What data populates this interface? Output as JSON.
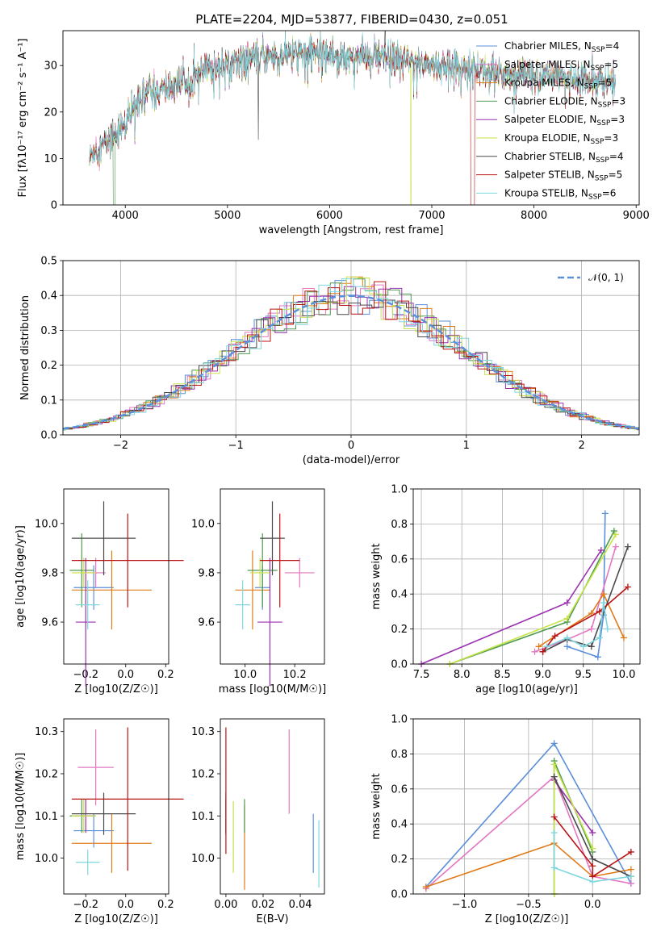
{
  "figure": {
    "title": "PLATE=2204, MJD=53877, FIBERID=0430, z=0.051",
    "model_colors": {
      "Chabrier MILES": "#5b8fd9",
      "Salpeter MILES": "#e377c2",
      "Kroupa MILES": "#e07b1a",
      "Chabrier ELODIE": "#4e9a4e",
      "Salpeter ELODIE": "#9b30b0",
      "Kroupa ELODIE": "#c7e34a",
      "Chabrier STELIB": "#4a4a4a",
      "Salpeter STELIB": "#b81414",
      "Kroupa STELIB": "#7fd6de"
    }
  },
  "chart_data": [
    {
      "id": "spectrum",
      "type": "line",
      "title": "PLATE=2204, MJD=53877, FIBERID=0430, z=0.051",
      "xlabel": "wavelength [Angstrom, rest frame]",
      "ylabel": "Flux [fλ10⁻¹⁷ erg cm⁻² s⁻¹ A⁻¹]",
      "xlim": [
        3390,
        9030
      ],
      "ylim": [
        0,
        37.5
      ],
      "xticks": [
        4000,
        5000,
        6000,
        7000,
        8000,
        9000
      ],
      "yticks": [
        0,
        10,
        20,
        30
      ],
      "grid": false,
      "legend_position": "top-right",
      "continuum": {
        "x": [
          3650,
          3700,
          3800,
          3900,
          4000,
          4100,
          4200,
          4300,
          4500,
          4700,
          4900,
          5100,
          5300,
          5500,
          5700,
          5900,
          6100,
          6300,
          6500,
          6700,
          6900,
          7100,
          7300,
          7500,
          7700,
          7900,
          8100,
          8300,
          8500,
          8800
        ],
        "y": [
          10,
          12,
          13,
          16,
          17,
          22,
          25,
          24,
          26,
          28,
          30,
          31,
          32,
          32,
          33,
          33,
          32,
          32,
          31.5,
          31,
          30.5,
          30,
          29.5,
          29,
          28.5,
          28,
          27.5,
          27.5,
          27,
          26.5
        ]
      },
      "series": [
        {
          "name": "Chabrier MILES, N_SSP=4",
          "label_text": "Chabrier MILES, N",
          "sub": "SSP",
          "suffix": "=4"
        },
        {
          "name": "Salpeter MILES, N_SSP=5",
          "label_text": "Salpeter MILES, N",
          "sub": "SSP",
          "suffix": "=5"
        },
        {
          "name": "Kroupa MILES, N_SSP=5",
          "label_text": "Kroupa MILES, N",
          "sub": "SSP",
          "suffix": "=5"
        },
        {
          "name": "Chabrier ELODIE, N_SSP=3",
          "label_text": "Chabrier ELODIE, N",
          "sub": "SSP",
          "suffix": "=3"
        },
        {
          "name": "Salpeter ELODIE, N_SSP=3",
          "label_text": "Salpeter ELODIE, N",
          "sub": "SSP",
          "suffix": "=3"
        },
        {
          "name": "Kroupa ELODIE, N_SSP=3",
          "label_text": "Kroupa ELODIE, N",
          "sub": "SSP",
          "suffix": "=3"
        },
        {
          "name": "Chabrier STELIB, N_SSP=4",
          "label_text": "Chabrier STELIB, N",
          "sub": "SSP",
          "suffix": "=4"
        },
        {
          "name": "Salpeter STELIB, N_SSP=5",
          "label_text": "Salpeter STELIB, N",
          "sub": "SSP",
          "suffix": "=5"
        },
        {
          "name": "Kroupa STELIB, N_SSP=6",
          "label_text": "Kroupa STELIB, N",
          "sub": "SSP",
          "suffix": "=6"
        }
      ]
    },
    {
      "id": "residuals",
      "type": "line",
      "xlabel": "(data-model)/error",
      "ylabel": "Normed distribution",
      "xlim": [
        -2.5,
        2.5
      ],
      "ylim": [
        0,
        0.5
      ],
      "xticks": [
        -2,
        -1,
        0,
        1,
        2
      ],
      "yticks": [
        0.0,
        0.1,
        0.2,
        0.3,
        0.4,
        0.5
      ],
      "grid": true,
      "legend_position": "top-right",
      "legend": "𝒩(0, 1)",
      "reference_curve": {
        "name": "𝒩(0, 1)",
        "mean": 0,
        "sigma": 1,
        "style": "dashed"
      },
      "bin_width": 0.1
    },
    {
      "id": "age_vs_Z",
      "type": "scatter",
      "xlabel": "Z [log10(Z/Z☉)]",
      "ylabel": "age [log10(age/yr)]",
      "xlim": [
        -0.31,
        0.215
      ],
      "ylim": [
        9.43,
        10.14
      ],
      "xticks": [
        -0.2,
        0.0,
        0.2
      ],
      "yticks": [
        9.6,
        9.8,
        10.0
      ],
      "grid": false,
      "points": [
        {
          "model": "Chabrier MILES",
          "x": -0.16,
          "y": 9.74,
          "xerr": 0.1,
          "yerr": 0.09
        },
        {
          "model": "Salpeter MILES",
          "x": -0.15,
          "y": 9.8,
          "xerr": 0.05,
          "yerr": 0.06
        },
        {
          "model": "Kroupa MILES",
          "x": -0.07,
          "y": 9.73,
          "xerr": 0.2,
          "yerr": 0.16
        },
        {
          "model": "Chabrier ELODIE",
          "x": -0.22,
          "y": 9.81,
          "xerr": 0.06,
          "yerr": 0.15
        },
        {
          "model": "Salpeter ELODIE",
          "x": -0.2,
          "y": 9.6,
          "xerr": 0.05,
          "yerr": 0.26
        },
        {
          "model": "Kroupa ELODIE",
          "x": -0.21,
          "y": 9.8,
          "xerr": 0.06,
          "yerr": 0.06
        },
        {
          "model": "Chabrier STELIB",
          "x": -0.11,
          "y": 9.94,
          "xerr": 0.16,
          "yerr": 0.15
        },
        {
          "model": "Salpeter STELIB",
          "x": 0.01,
          "y": 9.85,
          "xerr": 0.28,
          "yerr": 0.19
        },
        {
          "model": "Kroupa STELIB",
          "x": -0.19,
          "y": 9.67,
          "xerr": 0.06,
          "yerr": 0.1
        }
      ]
    },
    {
      "id": "age_vs_mass",
      "type": "scatter",
      "xlabel": "mass [log10(M/M☉)]",
      "ylabel": "",
      "xlim": [
        9.9,
        10.32
      ],
      "ylim": [
        9.43,
        10.14
      ],
      "xticks": [
        10.0,
        10.2
      ],
      "yticks": [
        9.6,
        9.8,
        10.0
      ],
      "grid": false,
      "points": [
        {
          "model": "Chabrier MILES",
          "x": 10.07,
          "y": 9.74,
          "xerr": 0.03,
          "yerr": 0.09
        },
        {
          "model": "Salpeter MILES",
          "x": 10.22,
          "y": 9.8,
          "xerr": 0.06,
          "yerr": 0.06
        },
        {
          "model": "Kroupa MILES",
          "x": 10.03,
          "y": 9.73,
          "xerr": 0.07,
          "yerr": 0.16
        },
        {
          "model": "Chabrier ELODIE",
          "x": 10.07,
          "y": 9.81,
          "xerr": 0.06,
          "yerr": 0.15
        },
        {
          "model": "Salpeter ELODIE",
          "x": 10.1,
          "y": 9.6,
          "xerr": 0.05,
          "yerr": 0.26
        },
        {
          "model": "Kroupa ELODIE",
          "x": 10.06,
          "y": 9.8,
          "xerr": 0.04,
          "yerr": 0.06
        },
        {
          "model": "Chabrier STELIB",
          "x": 10.11,
          "y": 9.94,
          "xerr": 0.05,
          "yerr": 0.15
        },
        {
          "model": "Salpeter STELIB",
          "x": 10.14,
          "y": 9.85,
          "xerr": 0.08,
          "yerr": 0.19
        },
        {
          "model": "Kroupa STELIB",
          "x": 9.99,
          "y": 9.67,
          "xerr": 0.03,
          "yerr": 0.1
        }
      ]
    },
    {
      "id": "weight_vs_age",
      "type": "line",
      "xlabel": "age [log10(age/yr)]",
      "ylabel": "mass weight",
      "xlim": [
        7.4,
        10.2
      ],
      "ylim": [
        0,
        1.0
      ],
      "xticks": [
        7.5,
        8.0,
        8.5,
        9.0,
        9.5,
        10.0
      ],
      "yticks": [
        0.0,
        0.2,
        0.4,
        0.6,
        0.8,
        1.0
      ],
      "grid": true,
      "series": [
        {
          "model": "Chabrier MILES",
          "x": [
            9.3,
            9.68,
            9.75,
            9.77
          ],
          "y": [
            0.1,
            0.04,
            0.28,
            0.86
          ]
        },
        {
          "model": "Salpeter MILES",
          "x": [
            8.9,
            9.3,
            9.6,
            9.9
          ],
          "y": [
            0.07,
            0.14,
            0.2,
            0.67
          ]
        },
        {
          "model": "Kroupa MILES",
          "x": [
            8.95,
            9.6,
            9.75,
            10.0
          ],
          "y": [
            0.1,
            0.29,
            0.4,
            0.15
          ]
        },
        {
          "model": "Chabrier ELODIE",
          "x": [
            7.85,
            9.3,
            9.88
          ],
          "y": [
            0.0,
            0.24,
            0.76
          ]
        },
        {
          "model": "Salpeter ELODIE",
          "x": [
            7.5,
            9.3,
            9.72
          ],
          "y": [
            0.0,
            0.35,
            0.65
          ]
        },
        {
          "model": "Kroupa ELODIE",
          "x": [
            7.85,
            9.3,
            9.9
          ],
          "y": [
            0.0,
            0.26,
            0.74
          ]
        },
        {
          "model": "Chabrier STELIB",
          "x": [
            9.0,
            9.3,
            9.6,
            10.05
          ],
          "y": [
            0.07,
            0.14,
            0.1,
            0.67
          ]
        },
        {
          "model": "Salpeter STELIB",
          "x": [
            9.0,
            9.15,
            9.7,
            10.05
          ],
          "y": [
            0.07,
            0.16,
            0.3,
            0.44
          ]
        },
        {
          "model": "Kroupa STELIB",
          "x": [
            9.05,
            9.3,
            9.5,
            9.7,
            9.75,
            9.8
          ],
          "y": [
            0.1,
            0.15,
            0.1,
            0.15,
            0.35,
            0.2
          ]
        }
      ]
    },
    {
      "id": "mass_vs_Z",
      "type": "scatter",
      "xlabel": "Z [log10(Z/Z☉)]",
      "ylabel": "mass [log10(M/M☉)]",
      "xlim": [
        -0.31,
        0.215
      ],
      "ylim": [
        9.915,
        10.33
      ],
      "xticks": [
        -0.2,
        0.0,
        0.2
      ],
      "yticks": [
        10.0,
        10.1,
        10.2,
        10.3
      ],
      "grid": false,
      "points": [
        {
          "model": "Chabrier MILES",
          "x": -0.16,
          "y": 10.065,
          "xerr": 0.1,
          "yerr": 0.04
        },
        {
          "model": "Salpeter MILES",
          "x": -0.15,
          "y": 10.215,
          "xerr": 0.09,
          "yerr": 0.09
        },
        {
          "model": "Kroupa MILES",
          "x": -0.07,
          "y": 10.035,
          "xerr": 0.2,
          "yerr": 0.07
        },
        {
          "model": "Chabrier ELODIE",
          "x": -0.22,
          "y": 10.1,
          "xerr": 0.06,
          "yerr": 0.04
        },
        {
          "model": "Salpeter ELODIE",
          "x": -0.2,
          "y": 10.1,
          "xerr": 0.05,
          "yerr": 0.04
        },
        {
          "model": "Kroupa ELODIE",
          "x": -0.21,
          "y": 10.1,
          "xerr": 0.06,
          "yerr": 0.04
        },
        {
          "model": "Chabrier STELIB",
          "x": -0.11,
          "y": 10.105,
          "xerr": 0.16,
          "yerr": 0.05
        },
        {
          "model": "Salpeter STELIB",
          "x": 0.01,
          "y": 10.14,
          "xerr": 0.28,
          "yerr": 0.17
        },
        {
          "model": "Kroupa STELIB",
          "x": -0.19,
          "y": 9.99,
          "xerr": 0.06,
          "yerr": 0.03
        }
      ]
    },
    {
      "id": "mass_vs_EBV",
      "type": "scatter",
      "xlabel": "E(B-V)",
      "ylabel": "",
      "xlim": [
        -0.003,
        0.053
      ],
      "ylim": [
        9.915,
        10.33
      ],
      "xticks": [
        0.0,
        0.02,
        0.04
      ],
      "yticks": [
        10.0,
        10.1,
        10.2,
        10.3
      ],
      "grid": false,
      "points": [
        {
          "model": "Chabrier MILES",
          "x": 0.047,
          "y": 10.035,
          "xerr": 0,
          "yerr": 0.07
        },
        {
          "model": "Salpeter MILES",
          "x": 0.034,
          "y": 10.205,
          "xerr": 0,
          "yerr": 0.1
        },
        {
          "model": "Kroupa MILES",
          "x": 0.01,
          "y": 10.025,
          "xerr": 0,
          "yerr": 0.1
        },
        {
          "model": "Chabrier ELODIE",
          "x": 0.01,
          "y": 10.1,
          "xerr": 0,
          "yerr": 0.04
        },
        {
          "model": "Salpeter ELODIE",
          "x": 0.0,
          "y": 10.1,
          "xerr": 0,
          "yerr": 0.04
        },
        {
          "model": "Kroupa ELODIE",
          "x": 0.004,
          "y": 10.05,
          "xerr": 0,
          "yerr": 0.085
        },
        {
          "model": "Chabrier STELIB",
          "x": 0.0,
          "y": 10.105,
          "xerr": 0,
          "yerr": 0.05
        },
        {
          "model": "Salpeter STELIB",
          "x": 0.0,
          "y": 10.16,
          "xerr": 0,
          "yerr": 0.15
        },
        {
          "model": "Kroupa STELIB",
          "x": 0.05,
          "y": 10.01,
          "xerr": 0,
          "yerr": 0.08
        }
      ]
    },
    {
      "id": "weight_vs_Z",
      "type": "line",
      "xlabel": "Z [log10(Z/Z☉)]",
      "ylabel": "mass weight",
      "xlim": [
        -1.4,
        0.37
      ],
      "ylim": [
        0,
        1.0
      ],
      "xticks": [
        -1.0,
        -0.5,
        0.0
      ],
      "yticks": [
        0.0,
        0.2,
        0.4,
        0.6,
        0.8,
        1.0
      ],
      "grid": true,
      "series": [
        {
          "model": "Chabrier MILES",
          "x": [
            -1.3,
            -0.3,
            0.3
          ],
          "y": [
            0.04,
            0.86,
            0.06
          ]
        },
        {
          "model": "Salpeter MILES",
          "x": [
            -1.3,
            -0.3,
            0.0,
            0.3
          ],
          "y": [
            0.03,
            0.67,
            0.1,
            0.06
          ]
        },
        {
          "model": "Kroupa MILES",
          "x": [
            -1.3,
            -0.3,
            0.0,
            0.3
          ],
          "y": [
            0.04,
            0.29,
            0.1,
            0.14
          ]
        },
        {
          "model": "Chabrier ELODIE",
          "x": [
            -0.3,
            -0.3,
            0.0
          ],
          "y": [
            0.0,
            0.76,
            0.24
          ]
        },
        {
          "model": "Salpeter ELODIE",
          "x": [
            -0.3,
            0.0
          ],
          "y": [
            0.65,
            0.35
          ]
        },
        {
          "model": "Kroupa ELODIE",
          "x": [
            -0.3,
            -0.3,
            0.0
          ],
          "y": [
            0.0,
            0.74,
            0.26
          ]
        },
        {
          "model": "Chabrier STELIB",
          "x": [
            -0.3,
            0.0,
            0.3
          ],
          "y": [
            0.67,
            0.2,
            0.1
          ]
        },
        {
          "model": "Salpeter STELIB",
          "x": [
            -0.3,
            0.0,
            0.0,
            0.3
          ],
          "y": [
            0.44,
            0.16,
            0.1,
            0.24
          ]
        },
        {
          "model": "Kroupa STELIB",
          "x": [
            -0.3,
            -0.3,
            0.0,
            0.3
          ],
          "y": [
            0.35,
            0.15,
            0.07,
            0.1
          ]
        }
      ]
    }
  ]
}
